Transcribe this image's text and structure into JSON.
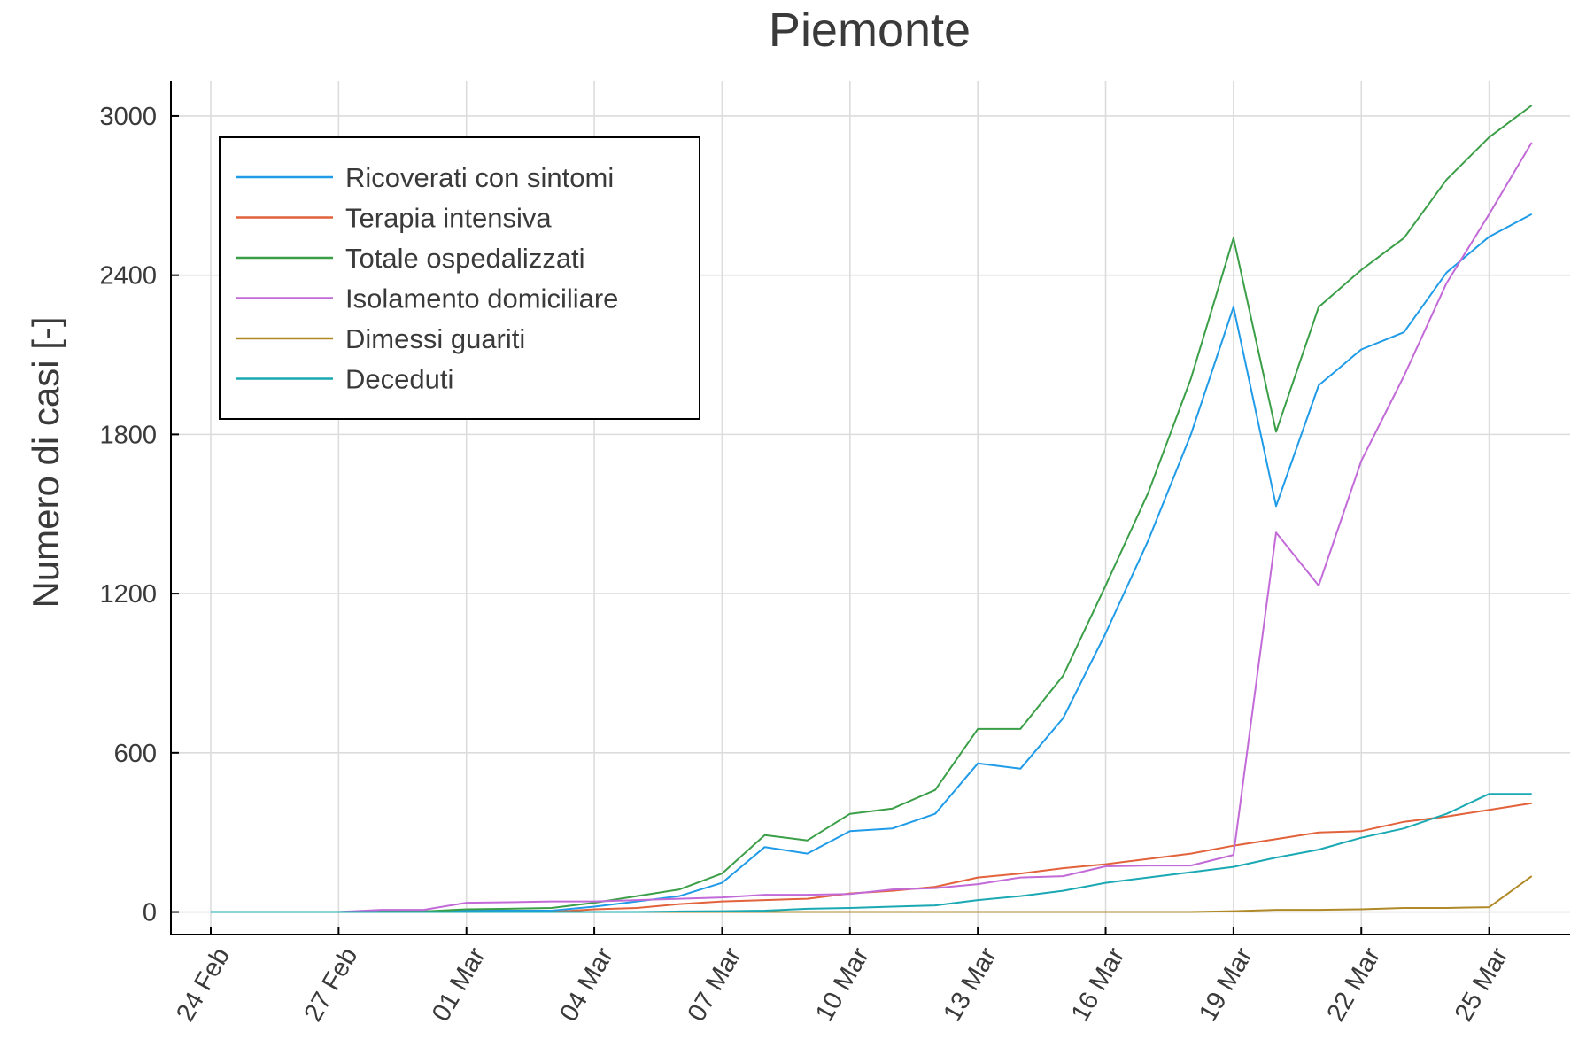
{
  "chart_data": {
    "type": "line",
    "title": "Piemonte",
    "xlabel": "",
    "ylabel": "Numero di casi [-]",
    "x": [
      "24 Feb",
      "25 Feb",
      "26 Feb",
      "27 Feb",
      "28 Feb",
      "29 Feb",
      "01 Mar",
      "02 Mar",
      "03 Mar",
      "04 Mar",
      "05 Mar",
      "06 Mar",
      "07 Mar",
      "08 Mar",
      "09 Mar",
      "10 Mar",
      "11 Mar",
      "12 Mar",
      "13 Mar",
      "14 Mar",
      "15 Mar",
      "16 Mar",
      "17 Mar",
      "18 Mar",
      "19 Mar",
      "20 Mar",
      "21 Mar",
      "22 Mar",
      "23 Mar",
      "24 Mar",
      "25 Mar",
      "26 Mar"
    ],
    "xticks": [
      "24 Feb",
      "27 Feb",
      "01 Mar",
      "04 Mar",
      "07 Mar",
      "10 Mar",
      "13 Mar",
      "16 Mar",
      "19 Mar",
      "22 Mar",
      "25 Mar"
    ],
    "xtick_index": [
      0,
      3,
      6,
      9,
      12,
      15,
      18,
      21,
      24,
      27,
      30
    ],
    "ylim": [
      -85,
      3130
    ],
    "yticks": [
      0,
      600,
      1200,
      1800,
      2400,
      3000
    ],
    "ytick_labels": [
      "0",
      "600",
      "1200",
      "1800",
      "2400",
      "3000"
    ],
    "grid": true,
    "legend_position": "top-left",
    "series": [
      {
        "name": "Ricoverati con sintomi",
        "color": "#1f9be8",
        "values": [
          0,
          0,
          0,
          0,
          2,
          2,
          5,
          5,
          5,
          20,
          40,
          60,
          110,
          245,
          220,
          305,
          315,
          370,
          560,
          540,
          730,
          1050,
          1400,
          1800,
          2280,
          1530,
          1985,
          2120,
          2185,
          2410,
          2545,
          2630
        ]
      },
      {
        "name": "Terapia intensiva",
        "color": "#e2623b",
        "values": [
          0,
          0,
          0,
          0,
          0,
          0,
          0,
          0,
          0,
          10,
          15,
          30,
          40,
          45,
          50,
          70,
          80,
          95,
          130,
          145,
          165,
          180,
          200,
          220,
          250,
          275,
          300,
          305,
          340,
          360,
          385,
          410
        ]
      },
      {
        "name": "Totale ospedalizzati",
        "color": "#3b9f48",
        "values": [
          0,
          0,
          0,
          0,
          2,
          2,
          10,
          12,
          15,
          35,
          60,
          85,
          145,
          290,
          270,
          370,
          390,
          460,
          690,
          690,
          890,
          1230,
          1580,
          2010,
          2540,
          1810,
          2280,
          2420,
          2540,
          2760,
          2920,
          3040
        ]
      },
      {
        "name": "Isolamento domiciliare",
        "color": "#c26ad8",
        "values": [
          0,
          0,
          0,
          0,
          8,
          8,
          35,
          37,
          40,
          40,
          45,
          50,
          55,
          65,
          65,
          68,
          85,
          90,
          105,
          130,
          135,
          172,
          175,
          175,
          215,
          1430,
          1230,
          1700,
          2020,
          2370,
          2630,
          2900
        ]
      },
      {
        "name": "Dimessi guariti",
        "color": "#b08a28",
        "values": [
          0,
          0,
          0,
          0,
          0,
          0,
          0,
          0,
          0,
          0,
          0,
          0,
          0,
          0,
          0,
          0,
          0,
          0,
          0,
          0,
          0,
          0,
          0,
          0,
          3,
          8,
          8,
          10,
          15,
          15,
          18,
          135
        ]
      },
      {
        "name": "Deceduti",
        "color": "#1aa9b3",
        "values": [
          0,
          0,
          0,
          0,
          0,
          0,
          0,
          0,
          0,
          0,
          0,
          2,
          3,
          5,
          12,
          15,
          20,
          25,
          45,
          60,
          80,
          110,
          130,
          150,
          170,
          205,
          235,
          280,
          315,
          370,
          445,
          445
        ]
      }
    ]
  }
}
